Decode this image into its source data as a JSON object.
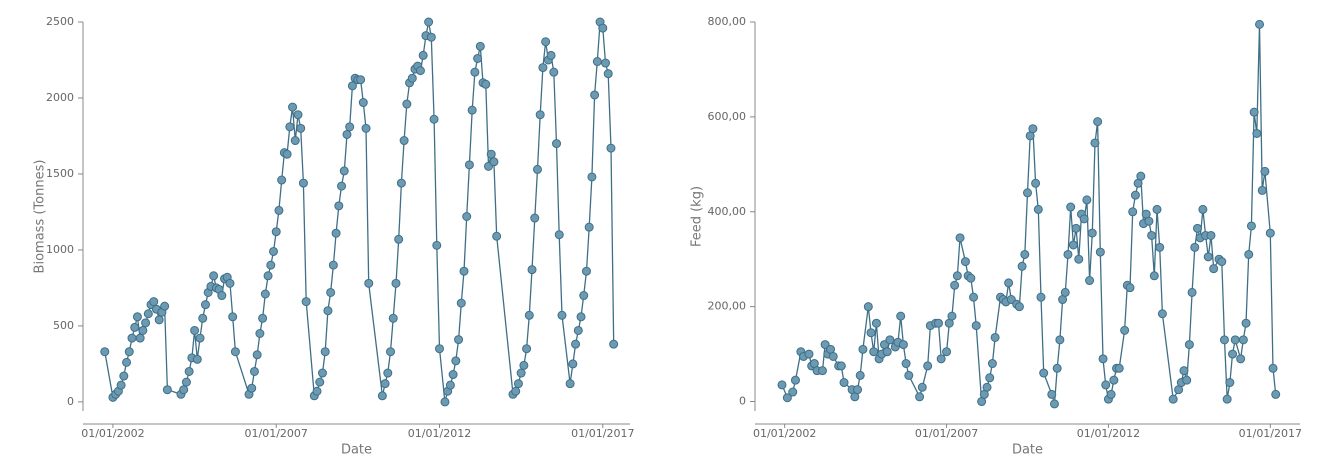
{
  "chart_data": [
    {
      "type": "line",
      "xlabel": "Date",
      "ylabel": "Biomass (Tonnes)",
      "color": "#3f6f86",
      "marker_color": "#6b9ab2",
      "xlim": [
        "2001-02",
        "2017-11"
      ],
      "ylim": [
        -60,
        2500
      ],
      "xticks": [
        {
          "value": "2002-01",
          "label": "01/01/2002"
        },
        {
          "value": "2007-01",
          "label": "01/01/2007"
        },
        {
          "value": "2012-01",
          "label": "01/01/2012"
        },
        {
          "value": "2017-01",
          "label": "01/01/2017"
        }
      ],
      "yticks": [
        0,
        500,
        1000,
        1500,
        2000,
        2500
      ],
      "x": [
        "2001-10",
        "2002-01",
        "2002-02",
        "2002-03",
        "2002-04",
        "2002-05",
        "2002-06",
        "2002-07",
        "2002-08",
        "2002-09",
        "2002-10",
        "2002-11",
        "2002-12",
        "2003-01",
        "2003-02",
        "2003-03",
        "2003-04",
        "2003-05",
        "2003-06",
        "2003-07",
        "2003-08",
        "2003-09",
        "2004-02",
        "2004-03",
        "2004-04",
        "2004-05",
        "2004-06",
        "2004-07",
        "2004-08",
        "2004-09",
        "2004-10",
        "2004-11",
        "2004-12",
        "2005-01",
        "2005-02",
        "2005-03",
        "2005-04",
        "2005-05",
        "2005-06",
        "2005-07",
        "2005-08",
        "2005-09",
        "2005-10",
        "2006-03",
        "2006-04",
        "2006-05",
        "2006-06",
        "2006-07",
        "2006-08",
        "2006-09",
        "2006-10",
        "2006-11",
        "2006-12",
        "2007-01",
        "2007-02",
        "2007-03",
        "2007-04",
        "2007-05",
        "2007-06",
        "2007-07",
        "2007-08",
        "2007-09",
        "2007-10",
        "2007-11",
        "2007-12",
        "2008-03",
        "2008-04",
        "2008-05",
        "2008-06",
        "2008-07",
        "2008-08",
        "2008-09",
        "2008-10",
        "2008-11",
        "2008-12",
        "2009-01",
        "2009-02",
        "2009-03",
        "2009-04",
        "2009-05",
        "2009-06",
        "2009-07",
        "2009-08",
        "2009-09",
        "2009-10",
        "2009-11",
        "2010-04",
        "2010-05",
        "2010-06",
        "2010-07",
        "2010-08",
        "2010-09",
        "2010-10",
        "2010-11",
        "2010-12",
        "2011-01",
        "2011-02",
        "2011-03",
        "2011-04",
        "2011-05",
        "2011-06",
        "2011-07",
        "2011-08",
        "2011-09",
        "2011-10",
        "2011-11",
        "2011-12",
        "2012-01",
        "2012-03",
        "2012-04",
        "2012-05",
        "2012-06",
        "2012-07",
        "2012-08",
        "2012-09",
        "2012-10",
        "2012-11",
        "2012-12",
        "2013-01",
        "2013-02",
        "2013-03",
        "2013-04",
        "2013-05",
        "2013-06",
        "2013-07",
        "2013-08",
        "2013-09",
        "2013-10",
        "2014-04",
        "2014-05",
        "2014-06",
        "2014-07",
        "2014-08",
        "2014-09",
        "2014-10",
        "2014-11",
        "2014-12",
        "2015-01",
        "2015-02",
        "2015-03",
        "2015-04",
        "2015-05",
        "2015-06",
        "2015-07",
        "2015-08",
        "2015-09",
        "2015-10",
        "2016-01",
        "2016-02",
        "2016-03",
        "2016-04",
        "2016-05",
        "2016-06",
        "2016-07",
        "2016-08",
        "2016-09",
        "2016-10",
        "2016-11",
        "2016-12",
        "2017-01",
        "2017-02",
        "2017-03",
        "2017-04",
        "2017-05"
      ],
      "values": [
        330,
        30,
        50,
        70,
        110,
        170,
        260,
        330,
        420,
        490,
        560,
        420,
        470,
        520,
        580,
        640,
        660,
        610,
        540,
        590,
        630,
        80,
        50,
        80,
        130,
        200,
        290,
        470,
        280,
        420,
        550,
        640,
        720,
        760,
        830,
        750,
        740,
        700,
        810,
        820,
        780,
        560,
        330,
        50,
        90,
        200,
        310,
        450,
        550,
        710,
        830,
        900,
        990,
        1120,
        1260,
        1460,
        1640,
        1630,
        1810,
        1940,
        1720,
        1890,
        1800,
        1440,
        660,
        40,
        70,
        130,
        190,
        330,
        600,
        720,
        900,
        1110,
        1290,
        1420,
        1520,
        1760,
        1810,
        2080,
        2130,
        2120,
        2120,
        1970,
        1800,
        780,
        40,
        120,
        190,
        330,
        550,
        780,
        1070,
        1440,
        1720,
        1960,
        2100,
        2130,
        2190,
        2210,
        2180,
        2280,
        2410,
        2500,
        2400,
        1860,
        1030,
        350,
        0,
        70,
        110,
        180,
        270,
        410,
        650,
        860,
        1220,
        1560,
        1920,
        2170,
        2260,
        2340,
        2100,
        2090,
        1550,
        1630,
        1580,
        1090,
        50,
        70,
        120,
        190,
        240,
        350,
        570,
        870,
        1210,
        1530,
        1890,
        2200,
        2370,
        2250,
        2280,
        2170,
        1700,
        1100,
        570,
        120,
        250,
        380,
        470,
        560,
        700,
        860,
        1150,
        1480,
        2020,
        2240,
        2500,
        2460,
        2230,
        2160,
        1670,
        380
      ]
    },
    {
      "type": "line",
      "xlabel": "Date",
      "ylabel": "Feed (kg)",
      "color": "#3f6f86",
      "marker_color": "#6b9ab2",
      "xlim": [
        "2001-02",
        "2017-12"
      ],
      "ylim": [
        -20,
        800
      ],
      "xticks": [
        {
          "value": "2002-01",
          "label": "01/01/2002"
        },
        {
          "value": "2007-01",
          "label": "01/01/2007"
        },
        {
          "value": "2012-01",
          "label": "01/01/2012"
        },
        {
          "value": "2017-01",
          "label": "01/01/2017"
        }
      ],
      "yticks": [
        0,
        {
          "value": 200,
          "label": "200,00"
        },
        {
          "value": 400,
          "label": "400,00"
        },
        {
          "value": 600,
          "label": "600,00"
        },
        {
          "value": 800,
          "label": "800,00"
        }
      ],
      "x": [
        "2001-12",
        "2002-02",
        "2002-04",
        "2002-05",
        "2002-07",
        "2002-08",
        "2002-10",
        "2002-11",
        "2002-12",
        "2003-01",
        "2003-03",
        "2003-04",
        "2003-05",
        "2003-06",
        "2003-07",
        "2003-09",
        "2003-10",
        "2003-11",
        "2004-02",
        "2004-03",
        "2004-04",
        "2004-05",
        "2004-06",
        "2004-08",
        "2004-09",
        "2004-10",
        "2004-11",
        "2004-12",
        "2005-01",
        "2005-02",
        "2005-03",
        "2005-04",
        "2005-06",
        "2005-07",
        "2005-08",
        "2005-09",
        "2005-10",
        "2005-11",
        "2006-03",
        "2006-04",
        "2006-06",
        "2006-07",
        "2006-09",
        "2006-10",
        "2006-11",
        "2007-01",
        "2007-02",
        "2007-03",
        "2007-04",
        "2007-05",
        "2007-06",
        "2007-08",
        "2007-09",
        "2007-10",
        "2007-11",
        "2007-12",
        "2008-02",
        "2008-03",
        "2008-04",
        "2008-05",
        "2008-06",
        "2008-07",
        "2008-09",
        "2008-10",
        "2008-11",
        "2008-12",
        "2009-01",
        "2009-03",
        "2009-04",
        "2009-05",
        "2009-06",
        "2009-07",
        "2009-08",
        "2009-09",
        "2009-10",
        "2009-11",
        "2009-12",
        "2010-01",
        "2010-04",
        "2010-05",
        "2010-06",
        "2010-07",
        "2010-08",
        "2010-09",
        "2010-10",
        "2010-11",
        "2010-12",
        "2011-01",
        "2011-02",
        "2011-03",
        "2011-04",
        "2011-05",
        "2011-06",
        "2011-07",
        "2011-08",
        "2011-09",
        "2011-10",
        "2011-11",
        "2011-12",
        "2012-01",
        "2012-02",
        "2012-03",
        "2012-04",
        "2012-05",
        "2012-07",
        "2012-08",
        "2012-09",
        "2012-10",
        "2012-11",
        "2012-12",
        "2013-01",
        "2013-02",
        "2013-03",
        "2013-04",
        "2013-05",
        "2013-06",
        "2013-07",
        "2013-08",
        "2013-09",
        "2014-01",
        "2014-03",
        "2014-04",
        "2014-05",
        "2014-06",
        "2014-07",
        "2014-08",
        "2014-09",
        "2014-10",
        "2014-11",
        "2014-12",
        "2015-01",
        "2015-02",
        "2015-03",
        "2015-04",
        "2015-06",
        "2015-07",
        "2015-08",
        "2015-09",
        "2015-10",
        "2015-11",
        "2015-12",
        "2016-02",
        "2016-03",
        "2016-04",
        "2016-05",
        "2016-06",
        "2016-07",
        "2016-08",
        "2016-09",
        "2016-10",
        "2016-11",
        "2017-01",
        "2017-02",
        "2017-03"
      ],
      "values": [
        35,
        8,
        20,
        45,
        105,
        95,
        100,
        75,
        80,
        65,
        65,
        120,
        100,
        110,
        95,
        75,
        75,
        40,
        25,
        10,
        25,
        55,
        110,
        200,
        145,
        105,
        165,
        90,
        100,
        120,
        105,
        130,
        115,
        125,
        180,
        120,
        80,
        55,
        10,
        30,
        75,
        160,
        165,
        165,
        90,
        105,
        165,
        180,
        245,
        265,
        345,
        295,
        265,
        260,
        220,
        160,
        0,
        15,
        30,
        50,
        80,
        135,
        220,
        215,
        210,
        250,
        215,
        205,
        200,
        285,
        310,
        440,
        560,
        575,
        460,
        405,
        220,
        60,
        15,
        -5,
        70,
        130,
        215,
        230,
        310,
        410,
        330,
        365,
        300,
        395,
        385,
        425,
        255,
        355,
        545,
        590,
        315,
        90,
        35,
        5,
        15,
        45,
        70,
        70,
        150,
        245,
        240,
        400,
        435,
        460,
        475,
        375,
        395,
        380,
        350,
        265,
        405,
        325,
        185,
        5,
        25,
        40,
        65,
        45,
        120,
        230,
        325,
        365,
        345,
        405,
        350,
        305,
        350,
        280,
        300,
        295,
        130,
        5,
        40,
        100,
        130,
        90,
        130,
        165,
        310,
        370,
        610,
        565,
        795,
        445,
        485,
        355,
        70,
        15
      ]
    }
  ]
}
